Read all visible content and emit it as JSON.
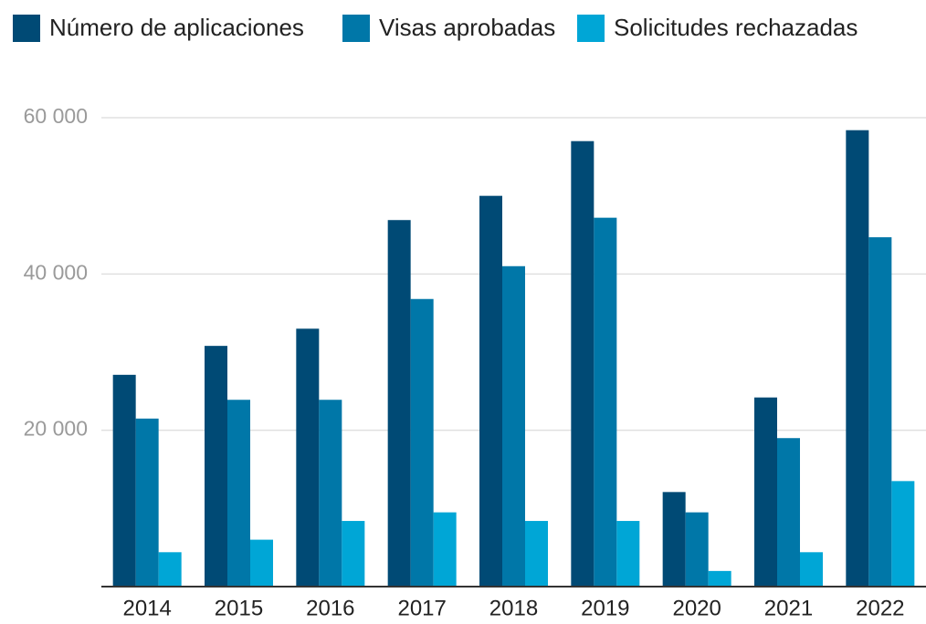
{
  "chart_data": {
    "type": "bar",
    "categories": [
      "2014",
      "2015",
      "2016",
      "2017",
      "2018",
      "2019",
      "2020",
      "2021",
      "2022"
    ],
    "series": [
      {
        "name": "Número de aplicaciones",
        "color": "#004a75",
        "values": [
          27100,
          30800,
          33000,
          46900,
          50000,
          57000,
          12100,
          24200,
          58400
        ]
      },
      {
        "name": "Visas aprobadas",
        "color": "#0077a8",
        "values": [
          21500,
          23900,
          23900,
          36800,
          41000,
          47200,
          9500,
          19000,
          44700
        ]
      },
      {
        "name": "Solicitudes rechazadas",
        "color": "#00a6d6",
        "values": [
          4400,
          6000,
          8400,
          9500,
          8400,
          8400,
          2000,
          4400,
          13500
        ]
      }
    ],
    "ylim": [
      0,
      60000
    ],
    "yticks": [
      {
        "value": 20000,
        "label": "20 000"
      },
      {
        "value": 40000,
        "label": "40 000"
      },
      {
        "value": 60000,
        "label": "60 000"
      }
    ],
    "grid": true,
    "legend": "top"
  }
}
